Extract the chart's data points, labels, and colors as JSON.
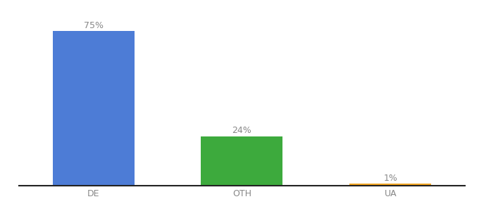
{
  "categories": [
    "DE",
    "OTH",
    "UA"
  ],
  "values": [
    75,
    24,
    1
  ],
  "bar_colors": [
    "#4d7cd6",
    "#3daa3d",
    "#f4a520"
  ],
  "ylim": [
    0,
    82
  ],
  "label_fontsize": 9,
  "tick_fontsize": 9,
  "background_color": "#ffffff",
  "bar_width": 0.55,
  "label_color": "#888888",
  "tick_color": "#888888",
  "spine_color": "#222222"
}
